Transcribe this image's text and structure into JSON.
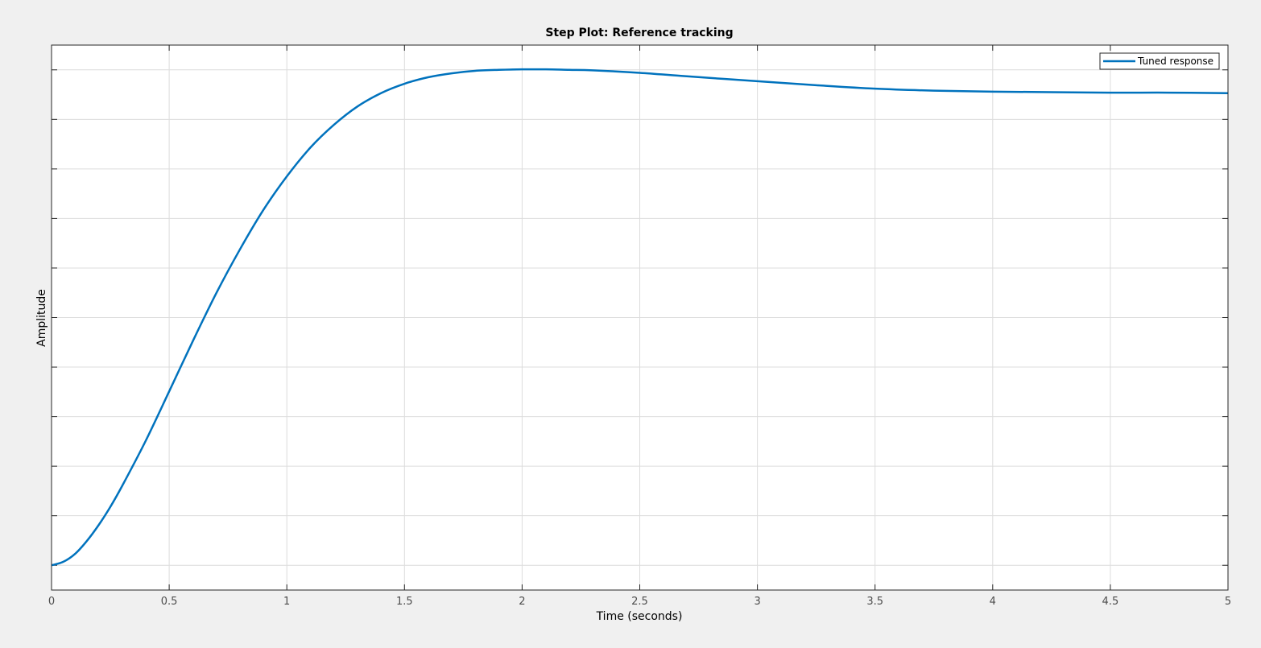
{
  "chart_data": {
    "type": "line",
    "title": "Step Plot: Reference tracking",
    "xlabel": "Time (seconds)",
    "ylabel": "Amplitude",
    "xlim": [
      0,
      5
    ],
    "ylim": [
      -0.05,
      1.05
    ],
    "x_ticks": [
      0,
      0.5,
      1,
      1.5,
      2,
      2.5,
      3,
      3.5,
      4,
      4.5,
      5
    ],
    "x_tick_labels": [
      "0",
      "0.5",
      "1",
      "1.5",
      "2",
      "2.5",
      "3",
      "3.5",
      "4",
      "4.5",
      "5"
    ],
    "y_ticks": [
      0,
      0.1,
      0.2,
      0.3,
      0.4,
      0.5,
      0.6,
      0.7,
      0.8,
      0.9,
      1.0
    ],
    "y_tick_labels_shown": false,
    "grid": true,
    "legend": {
      "placement": "top-right",
      "entries": [
        "Tuned response"
      ]
    },
    "series": [
      {
        "name": "Tuned response",
        "color": "#0072bd",
        "x": [
          0,
          0.05,
          0.1,
          0.15,
          0.2,
          0.25,
          0.3,
          0.4,
          0.5,
          0.6,
          0.7,
          0.8,
          0.9,
          1.0,
          1.1,
          1.2,
          1.3,
          1.4,
          1.5,
          1.6,
          1.7,
          1.8,
          1.9,
          2.0,
          2.1,
          2.2,
          2.3,
          2.5,
          2.7,
          3.0,
          3.25,
          3.5,
          3.75,
          4.0,
          4.25,
          4.5,
          4.75,
          5.0
        ],
        "y": [
          0,
          0.007,
          0.023,
          0.049,
          0.081,
          0.118,
          0.16,
          0.251,
          0.351,
          0.452,
          0.549,
          0.637,
          0.717,
          0.785,
          0.843,
          0.889,
          0.926,
          0.953,
          0.972,
          0.985,
          0.993,
          0.998,
          1.0,
          1.001,
          1.001,
          1.0,
          0.999,
          0.994,
          0.987,
          0.977,
          0.969,
          0.962,
          0.958,
          0.956,
          0.955,
          0.954,
          0.954,
          0.953
        ]
      }
    ]
  },
  "colors": {
    "background": "#f0f0f0",
    "plot_area": "#ffffff",
    "axis": "#262626",
    "grid": "#dcdcdc",
    "line": "#0072bd"
  }
}
